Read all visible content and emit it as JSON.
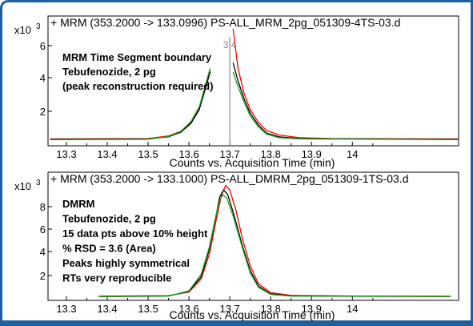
{
  "chart_data": [
    {
      "type": "line",
      "header": "+ MRM (353.2000 -> 133.0996) PS-ALL_MRM_2pg_051309-4TS-03.d",
      "y_multiplier": "x10 3",
      "xlabel": "Counts vs. Acquisition Time (min)",
      "ylabel": "",
      "xlim": [
        13.255,
        14.26
      ],
      "ylim": [
        -0.3,
        6.9
      ],
      "x_ticks": [
        "13.3",
        "13.4",
        "13.5",
        "13.6",
        "13.7",
        "13.8",
        "13.9",
        "14"
      ],
      "y_ticks": [
        "2",
        "4",
        "6"
      ],
      "annotations": [
        "MRM Time Segment boundary",
        "Tebufenozide, 2 pg",
        "(peak reconstruction  required)"
      ],
      "boundary_time": 13.7,
      "boundary_label": "3 4",
      "series": [
        {
          "color": "#ff0000",
          "segments": [
            [
              [
                13.26,
                0.08
              ],
              [
                13.5,
                0.1
              ],
              [
                13.55,
                0.25
              ],
              [
                13.58,
                0.5
              ],
              [
                13.605,
                1.0
              ],
              [
                13.625,
                1.8
              ],
              [
                13.64,
                3.0
              ],
              [
                13.652,
                3.9
              ]
            ],
            [
              [
                13.708,
                6.2
              ],
              [
                13.72,
                4.0
              ],
              [
                13.735,
                2.6
              ],
              [
                13.75,
                1.7
              ],
              [
                13.77,
                1.0
              ],
              [
                13.79,
                0.55
              ],
              [
                13.82,
                0.3
              ],
              [
                13.87,
                0.15
              ],
              [
                13.95,
                0.1
              ],
              [
                14.26,
                0.08
              ]
            ]
          ]
        },
        {
          "color": "#000000",
          "segments": [
            [
              [
                13.26,
                0.06
              ],
              [
                13.5,
                0.08
              ],
              [
                13.55,
                0.2
              ],
              [
                13.58,
                0.45
              ],
              [
                13.605,
                0.95
              ],
              [
                13.625,
                1.7
              ],
              [
                13.64,
                2.85
              ],
              [
                13.652,
                3.8
              ]
            ],
            [
              [
                13.708,
                4.3
              ],
              [
                13.72,
                3.3
              ],
              [
                13.735,
                2.3
              ],
              [
                13.75,
                1.5
              ],
              [
                13.77,
                0.85
              ],
              [
                13.79,
                0.4
              ],
              [
                13.82,
                0.2
              ],
              [
                13.87,
                0.1
              ],
              [
                14.26,
                0.06
              ]
            ]
          ]
        },
        {
          "color": "#1aa01a",
          "segments": [
            [
              [
                13.26,
                0.04
              ],
              [
                13.5,
                0.06
              ],
              [
                13.55,
                0.22
              ],
              [
                13.58,
                0.5
              ],
              [
                13.605,
                1.05
              ],
              [
                13.625,
                1.85
              ],
              [
                13.64,
                3.05
              ],
              [
                13.652,
                4.0
              ]
            ],
            [
              [
                13.708,
                3.8
              ],
              [
                13.72,
                3.0
              ],
              [
                13.735,
                2.1
              ],
              [
                13.75,
                1.35
              ],
              [
                13.77,
                0.75
              ],
              [
                13.79,
                0.35
              ],
              [
                13.82,
                0.15
              ],
              [
                13.87,
                0.08
              ],
              [
                14.26,
                0.04
              ]
            ]
          ]
        }
      ]
    },
    {
      "type": "line",
      "header": "+ MRM (353.2000 -> 133.1000) PS-ALL_DMRM_2pg_051309-1TS-03.d",
      "y_multiplier": "x10 3",
      "xlabel": "Counts vs. Acquisition Time (min)",
      "ylabel": "",
      "xlim": [
        13.255,
        14.26
      ],
      "ylim": [
        -0.3,
        10.5
      ],
      "x_ticks": [
        "13.3",
        "13.4",
        "13.5",
        "13.6",
        "13.7",
        "13.8",
        "13.9",
        "14"
      ],
      "y_ticks": [
        "2",
        "4",
        "6",
        "8"
      ],
      "annotations": [
        "DMRM",
        "Tebufenozide, 2 pg",
        "15 data pts above 10% height",
        "% RSD = 3.6 (Area)",
        "Peaks highly symmetrical",
        "RTs very reproducible"
      ],
      "series": [
        {
          "color": "#ff0000",
          "segments": [
            [
              [
                13.38,
                0.05
              ],
              [
                13.55,
                0.1
              ],
              [
                13.6,
                0.4
              ],
              [
                13.63,
                1.5
              ],
              [
                13.65,
                3.6
              ],
              [
                13.665,
                6.2
              ],
              [
                13.68,
                8.6
              ],
              [
                13.69,
                9.4
              ],
              [
                13.7,
                9.0
              ],
              [
                13.715,
                7.3
              ],
              [
                13.73,
                5.0
              ],
              [
                13.75,
                2.6
              ],
              [
                13.77,
                1.1
              ],
              [
                13.8,
                0.35
              ],
              [
                13.85,
                0.12
              ],
              [
                14.0,
                0.06
              ],
              [
                14.24,
                0.05
              ]
            ]
          ]
        },
        {
          "color": "#000000",
          "segments": [
            [
              [
                13.38,
                0.03
              ],
              [
                13.55,
                0.08
              ],
              [
                13.6,
                0.45
              ],
              [
                13.63,
                1.7
              ],
              [
                13.65,
                4.0
              ],
              [
                13.665,
                6.6
              ],
              [
                13.675,
                8.4
              ],
              [
                13.685,
                9.0
              ],
              [
                13.695,
                8.6
              ],
              [
                13.71,
                6.9
              ],
              [
                13.73,
                4.4
              ],
              [
                13.75,
                2.2
              ],
              [
                13.77,
                0.9
              ],
              [
                13.8,
                0.25
              ],
              [
                13.85,
                0.08
              ],
              [
                14.24,
                0.03
              ]
            ]
          ]
        },
        {
          "color": "#1aa01a",
          "segments": [
            [
              [
                13.38,
                0.01
              ],
              [
                13.55,
                0.06
              ],
              [
                13.6,
                0.5
              ],
              [
                13.63,
                1.9
              ],
              [
                13.65,
                4.2
              ],
              [
                13.665,
                6.7
              ],
              [
                13.675,
                8.1
              ],
              [
                13.683,
                8.6
              ],
              [
                13.693,
                8.3
              ],
              [
                13.71,
                6.6
              ],
              [
                13.73,
                4.2
              ],
              [
                13.75,
                2.0
              ],
              [
                13.77,
                0.8
              ],
              [
                13.8,
                0.2
              ],
              [
                13.85,
                0.06
              ],
              [
                14.24,
                0.02
              ]
            ]
          ]
        }
      ]
    }
  ]
}
